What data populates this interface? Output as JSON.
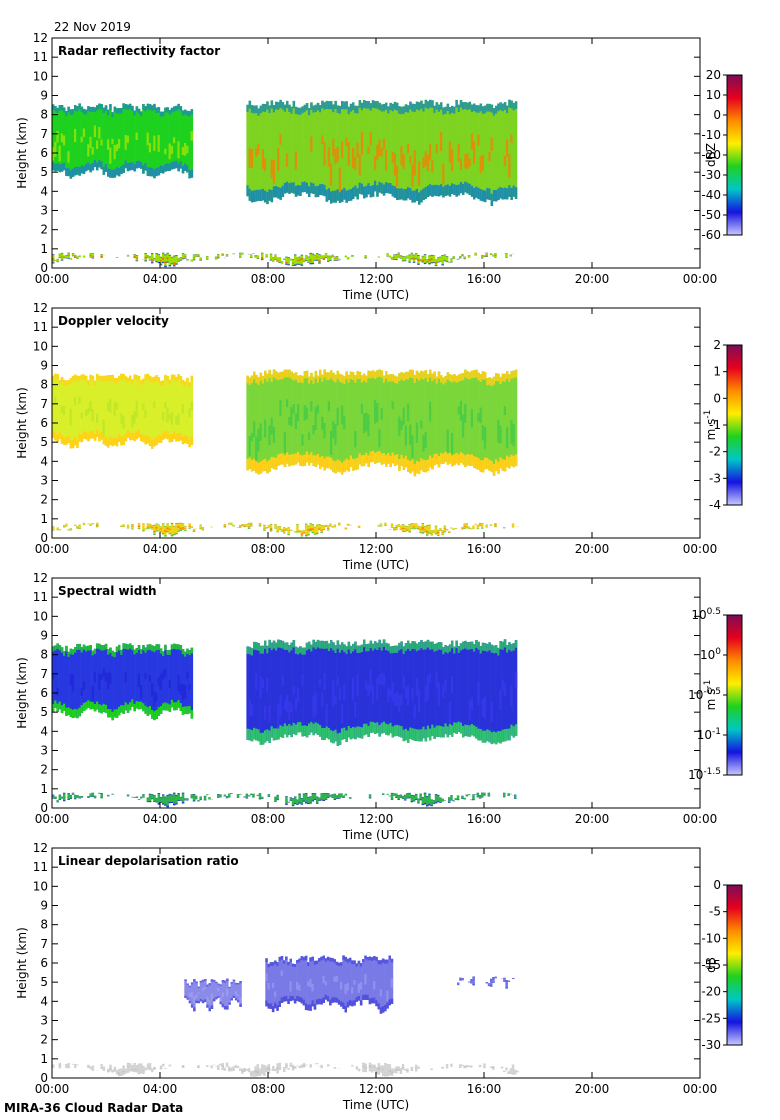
{
  "page": {
    "date": "22 Nov 2019",
    "footer": "MIRA-36 Cloud Radar Data"
  },
  "chart_data": [
    {
      "type": "heatmap",
      "title": "Radar reflectivity factor",
      "xlabel": "Time (UTC)",
      "ylabel": "Height (km)",
      "x_ticks": [
        "00:00",
        "04:00",
        "08:00",
        "12:00",
        "16:00",
        "20:00",
        "00:00"
      ],
      "y_ticks": [
        "0",
        "1",
        "2",
        "3",
        "4",
        "5",
        "6",
        "7",
        "8",
        "9",
        "10",
        "11",
        "12"
      ],
      "ylim": [
        0,
        12
      ],
      "data_end_hour": 17.2,
      "colorbar": {
        "label": "dBZ",
        "ticks": [
          "20",
          "10",
          "0",
          "-10",
          "-20",
          "-30",
          "-40",
          "-50",
          "-60"
        ],
        "colors": [
          "#7a0d57",
          "#e6001e",
          "#ff8a00",
          "#ffee00",
          "#1fd11f",
          "#00c7c7",
          "#1414e0",
          "#c8c8ff"
        ]
      },
      "fields": [
        {
          "t0": 0.0,
          "t1": 5.2,
          "h0": 4.5,
          "h1": 8.6,
          "mid": "#1fd11f",
          "edge": "#1f8fa8",
          "core": "#a8e600"
        },
        {
          "t0": 7.2,
          "t1": 17.2,
          "h0": 3.2,
          "h1": 8.8,
          "mid": "#7ed321",
          "edge": "#1f8fa8",
          "core": "#ff7a00"
        },
        {
          "t0": 0.0,
          "t1": 17.2,
          "h0": 0.0,
          "h1": 0.8,
          "mid": "#9ae000",
          "edge": "#2f4fd0",
          "core": "#ff5a00"
        }
      ]
    },
    {
      "type": "heatmap",
      "title": "Doppler velocity",
      "xlabel": "Time (UTC)",
      "ylabel": "Height (km)",
      "x_ticks": [
        "00:00",
        "04:00",
        "08:00",
        "12:00",
        "16:00",
        "20:00",
        "00:00"
      ],
      "y_ticks": [
        "0",
        "1",
        "2",
        "3",
        "4",
        "5",
        "6",
        "7",
        "8",
        "9",
        "10",
        "11",
        "12"
      ],
      "ylim": [
        0,
        12
      ],
      "data_end_hour": 17.2,
      "colorbar": {
        "label": "m s",
        "label_sup": "-1",
        "ticks": [
          "2",
          "1",
          "0",
          "-1",
          "-2",
          "-3",
          "-4"
        ],
        "colors": [
          "#7a0d57",
          "#e6001e",
          "#ff8a00",
          "#ffee00",
          "#1fd11f",
          "#00c7c7",
          "#1414e0",
          "#c8c8ff"
        ]
      },
      "fields": [
        {
          "t0": 0.0,
          "t1": 5.2,
          "h0": 4.5,
          "h1": 8.6,
          "mid": "#d8ef2a",
          "edge": "#ffd21a",
          "core": "#b8e62a"
        },
        {
          "t0": 7.2,
          "t1": 17.2,
          "h0": 3.2,
          "h1": 8.8,
          "mid": "#7bd63a",
          "edge": "#ffcf1a",
          "core": "#3ec84a"
        },
        {
          "t0": 0.0,
          "t1": 17.2,
          "h0": 0.0,
          "h1": 0.8,
          "mid": "#f0d21a",
          "edge": "#3ec84a",
          "core": "#ff6a00"
        }
      ]
    },
    {
      "type": "heatmap",
      "title": "Spectral width",
      "xlabel": "Time (UTC)",
      "ylabel": "Height (km)",
      "x_ticks": [
        "00:00",
        "04:00",
        "08:00",
        "12:00",
        "16:00",
        "20:00",
        "00:00"
      ],
      "y_ticks": [
        "0",
        "1",
        "2",
        "3",
        "4",
        "5",
        "6",
        "7",
        "8",
        "9",
        "10",
        "11",
        "12"
      ],
      "ylim": [
        0,
        12
      ],
      "data_end_hour": 17.2,
      "colorbar": {
        "label": "m s",
        "label_sup": "-1",
        "log_ticks": [
          {
            "base": "10",
            "exp": "0.5"
          },
          {
            "base": "10",
            "exp": "0"
          },
          {
            "base": "10",
            "exp": "-0.5"
          },
          {
            "base": "10",
            "exp": "-1"
          },
          {
            "base": "10",
            "exp": "-1.5"
          }
        ],
        "colors": [
          "#7a0d57",
          "#e6001e",
          "#ff8a00",
          "#ffee00",
          "#1fd11f",
          "#00c7c7",
          "#1414e0",
          "#c8c8ff"
        ]
      },
      "fields": [
        {
          "t0": 0.0,
          "t1": 5.2,
          "h0": 4.5,
          "h1": 8.6,
          "mid": "#2838e0",
          "edge": "#1fd11f",
          "core": "#1e26d8"
        },
        {
          "t0": 7.2,
          "t1": 17.2,
          "h0": 3.2,
          "h1": 8.8,
          "mid": "#2832d8",
          "edge": "#2fc070",
          "core": "#3a3af0"
        },
        {
          "t0": 0.0,
          "t1": 17.2,
          "h0": 0.0,
          "h1": 0.8,
          "mid": "#30b050",
          "edge": "#2832d8",
          "core": "#1fd11f"
        }
      ]
    },
    {
      "type": "heatmap",
      "title": "Linear depolarisation ratio",
      "xlabel": "Time (UTC)",
      "ylabel": "Height (km)",
      "x_ticks": [
        "00:00",
        "04:00",
        "08:00",
        "12:00",
        "16:00",
        "20:00",
        "00:00"
      ],
      "y_ticks": [
        "0",
        "1",
        "2",
        "3",
        "4",
        "5",
        "6",
        "7",
        "8",
        "9",
        "10",
        "11",
        "12"
      ],
      "ylim": [
        0,
        12
      ],
      "data_end_hour": 17.2,
      "colorbar": {
        "label": "dB",
        "ticks": [
          "0",
          "-5",
          "-10",
          "-15",
          "-20",
          "-25",
          "-30"
        ],
        "colors": [
          "#7a0d57",
          "#e6001e",
          "#ff8a00",
          "#ffee00",
          "#1fd11f",
          "#00c7c7",
          "#1414e0",
          "#c8c8ff"
        ]
      },
      "fields": [
        {
          "t0": 4.9,
          "t1": 7.0,
          "h0": 3.4,
          "h1": 5.2,
          "mid": "#8a8ae8",
          "edge": "#5a5ae0",
          "core": "#a0a0f0"
        },
        {
          "t0": 7.9,
          "t1": 12.6,
          "h0": 3.3,
          "h1": 6.4,
          "mid": "#7a7ae6",
          "edge": "#5050dc",
          "core": "#9a9af0"
        },
        {
          "t0": 15.0,
          "t1": 17.2,
          "h0": 4.6,
          "h1": 5.3,
          "mid": "#7070e6",
          "edge": "#5050dc",
          "core": "#8a8aee"
        },
        {
          "t0": 0.0,
          "t1": 17.2,
          "h0": 0.0,
          "h1": 0.8,
          "mid": "#d4d4d4",
          "edge": "#cfcfcf",
          "core": "#bdbdbd"
        }
      ]
    }
  ]
}
